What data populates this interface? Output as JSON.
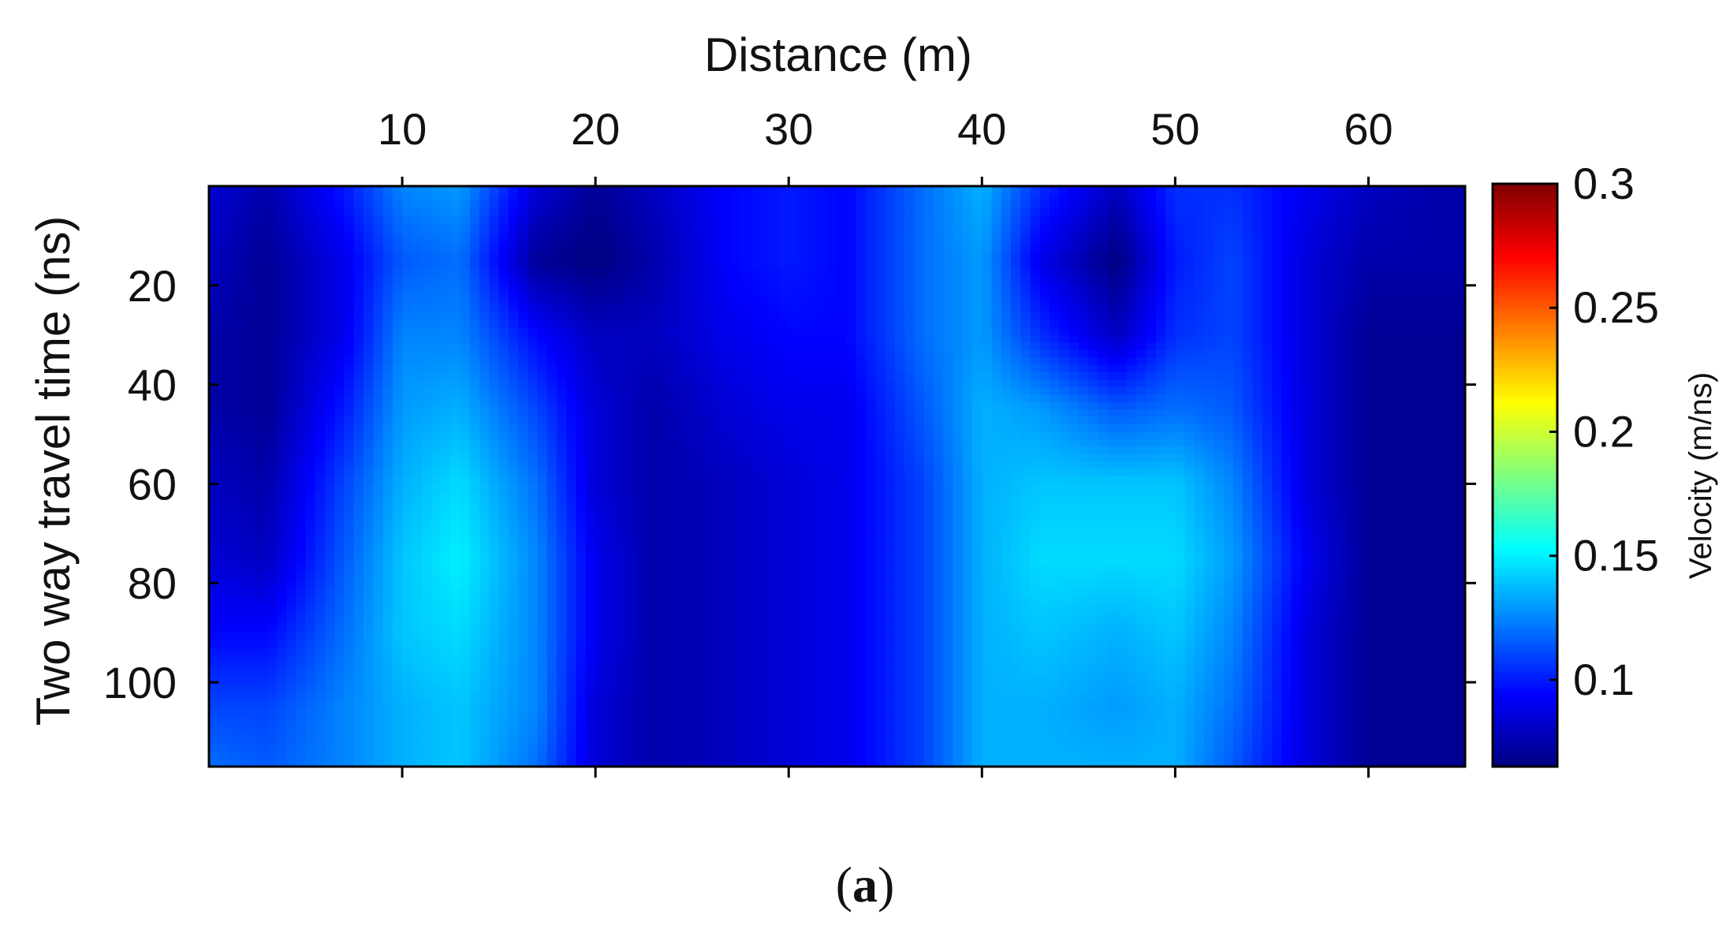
{
  "chart_data": {
    "type": "heatmap",
    "xlabel": "Distance (m)",
    "ylabel": "Two way travel time (ns)",
    "xlim": [
      0,
      65
    ],
    "ylim": [
      0,
      117
    ],
    "x_axis_position": "top",
    "y_axis_reversed": true,
    "x_ticks": [
      10,
      20,
      30,
      40,
      50,
      60
    ],
    "y_ticks": [
      20,
      40,
      60,
      80,
      100
    ],
    "colorbar": {
      "label": "Velocity (m/ns)",
      "colormap": "jet",
      "range": [
        0.065,
        0.3
      ],
      "ticks": [
        0.1,
        0.15,
        0.2,
        0.25,
        0.3
      ],
      "tick_labels": [
        "0.1",
        "0.15",
        "0.2",
        "0.25",
        "0.3"
      ]
    },
    "x": [
      0,
      3,
      7,
      10,
      13,
      17,
      20,
      23,
      27,
      30,
      33,
      37,
      40,
      43,
      47,
      50,
      53,
      57,
      60,
      63,
      65
    ],
    "y": [
      0,
      15,
      30,
      45,
      60,
      75,
      90,
      105,
      117
    ],
    "values": [
      [
        0.085,
        0.075,
        0.1,
        0.125,
        0.13,
        0.085,
        0.07,
        0.08,
        0.095,
        0.1,
        0.095,
        0.12,
        0.135,
        0.105,
        0.08,
        0.105,
        0.105,
        0.09,
        0.08,
        0.075,
        0.075
      ],
      [
        0.08,
        0.07,
        0.09,
        0.115,
        0.12,
        0.07,
        0.065,
        0.075,
        0.095,
        0.1,
        0.095,
        0.12,
        0.13,
        0.09,
        0.065,
        0.1,
        0.11,
        0.085,
        0.075,
        0.075,
        0.075
      ],
      [
        0.075,
        0.07,
        0.09,
        0.125,
        0.125,
        0.095,
        0.08,
        0.08,
        0.09,
        0.095,
        0.095,
        0.12,
        0.13,
        0.105,
        0.08,
        0.105,
        0.11,
        0.085,
        0.07,
        0.07,
        0.07
      ],
      [
        0.075,
        0.07,
        0.1,
        0.13,
        0.135,
        0.11,
        0.085,
        0.075,
        0.085,
        0.09,
        0.09,
        0.115,
        0.135,
        0.13,
        0.115,
        0.12,
        0.115,
        0.085,
        0.07,
        0.07,
        0.07
      ],
      [
        0.08,
        0.075,
        0.11,
        0.135,
        0.145,
        0.12,
        0.085,
        0.075,
        0.08,
        0.085,
        0.09,
        0.11,
        0.135,
        0.14,
        0.14,
        0.14,
        0.125,
        0.085,
        0.07,
        0.07,
        0.07
      ],
      [
        0.085,
        0.08,
        0.115,
        0.14,
        0.15,
        0.125,
        0.09,
        0.075,
        0.08,
        0.085,
        0.09,
        0.11,
        0.135,
        0.145,
        0.145,
        0.145,
        0.13,
        0.09,
        0.07,
        0.07,
        0.07
      ],
      [
        0.095,
        0.095,
        0.12,
        0.14,
        0.145,
        0.125,
        0.09,
        0.075,
        0.08,
        0.085,
        0.09,
        0.11,
        0.135,
        0.14,
        0.135,
        0.14,
        0.125,
        0.085,
        0.07,
        0.07,
        0.07
      ],
      [
        0.11,
        0.11,
        0.125,
        0.135,
        0.14,
        0.125,
        0.085,
        0.075,
        0.08,
        0.085,
        0.09,
        0.11,
        0.135,
        0.135,
        0.13,
        0.135,
        0.12,
        0.085,
        0.07,
        0.07,
        0.07
      ],
      [
        0.12,
        0.115,
        0.125,
        0.135,
        0.14,
        0.12,
        0.085,
        0.075,
        0.08,
        0.085,
        0.09,
        0.11,
        0.135,
        0.135,
        0.135,
        0.135,
        0.115,
        0.085,
        0.07,
        0.07,
        0.07
      ]
    ]
  },
  "caption": {
    "open": "(",
    "letter": "a",
    "close": ")"
  }
}
